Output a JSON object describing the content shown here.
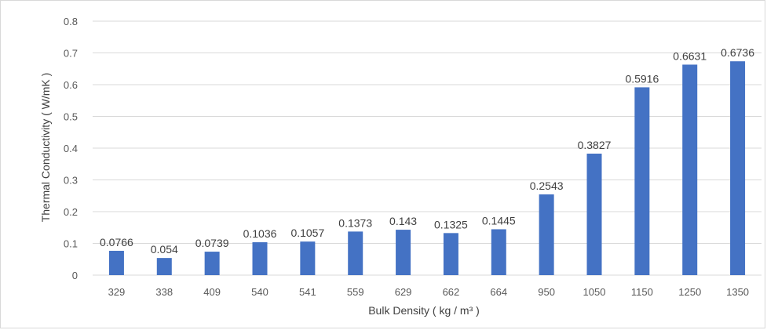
{
  "chart_data": {
    "type": "bar",
    "title": "",
    "xlabel": "Bulk Density ( kg / m³ )",
    "ylabel": "Thermal Conductivity ( W/mK )",
    "categories": [
      "329",
      "338",
      "409",
      "540",
      "541",
      "559",
      "629",
      "662",
      "664",
      "950",
      "1050",
      "1150",
      "1250",
      "1350"
    ],
    "values": [
      0.0766,
      0.054,
      0.0739,
      0.1036,
      0.1057,
      0.1373,
      0.143,
      0.1325,
      0.1445,
      0.2543,
      0.3827,
      0.5916,
      0.6631,
      0.6736
    ],
    "data_labels": [
      "0.0766",
      "0.054",
      "0.0739",
      "0.1036",
      "0.1057",
      "0.1373",
      "0.143",
      "0.1325",
      "0.1445",
      "0.2543",
      "0.3827",
      "0.5916",
      "0.6631",
      "0.6736"
    ],
    "ylim": [
      0,
      0.8
    ],
    "yticks": [
      "0",
      "0.1",
      "0.2",
      "0.3",
      "0.4",
      "0.5",
      "0.6",
      "0.7",
      "0.8"
    ],
    "grid": true,
    "bar_color": "#4472c4",
    "legend": "none"
  }
}
